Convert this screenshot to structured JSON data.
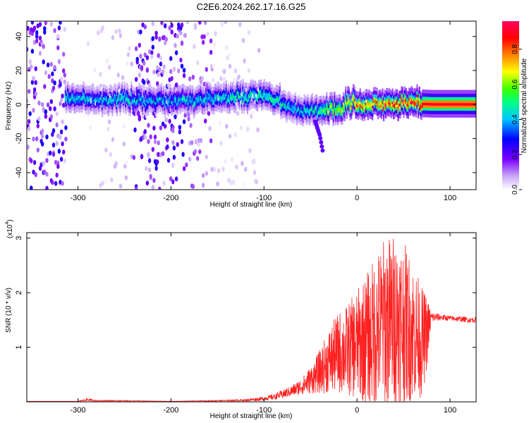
{
  "chart_data": [
    {
      "type": "heatmap",
      "title": "C2E6.2024.262.17.16.G25",
      "xlabel": "Height of straight line (km)",
      "ylabel": "Frequency (Hz)",
      "xlim": [
        -355,
        128
      ],
      "ylim": [
        -50,
        49
      ],
      "x_ticks": [
        -300,
        -200,
        -100,
        0,
        100
      ],
      "y_ticks": [
        -40,
        -20,
        0,
        20,
        40
      ],
      "colorbar": {
        "label": "Normalized spectral amplitude",
        "range": [
          0,
          0.96
        ],
        "ticks": [
          0.0,
          0.2,
          0.4,
          0.6,
          0.8
        ],
        "tick_labels": [
          "0.0",
          "0.2",
          "0.4",
          "0.6",
          "0.8"
        ],
        "colors": [
          "#ffffff",
          "#c8a8f8",
          "#7b00ff",
          "#0000ff",
          "#00c8ff",
          "#00ff80",
          "#40ff00",
          "#ffff00",
          "#ff8000",
          "#ff0000",
          "#ff0060"
        ]
      },
      "dominant_frequency_track": {
        "x": [
          -315,
          -300,
          -280,
          -260,
          -240,
          -220,
          -200,
          -180,
          -160,
          -140,
          -120,
          -105,
          -90,
          -75,
          -65,
          -55,
          -45,
          -35,
          -20,
          -10,
          0,
          20,
          40,
          60,
          80,
          100,
          128
        ],
        "y": [
          4,
          3.5,
          3,
          3,
          2.5,
          3,
          2.5,
          2.5,
          3.5,
          4.5,
          5.5,
          6,
          3,
          -1,
          -3,
          -3,
          -3,
          -3,
          -2,
          1,
          0,
          0.5,
          1,
          1,
          0.5,
          0.5,
          0.5
        ],
        "amplitude": [
          0.5,
          0.45,
          0.42,
          0.45,
          0.45,
          0.42,
          0.45,
          0.45,
          0.45,
          0.48,
          0.5,
          0.52,
          0.5,
          0.45,
          0.45,
          0.45,
          0.5,
          0.6,
          0.7,
          0.75,
          0.85,
          0.8,
          0.9,
          0.88,
          0.9,
          0.9,
          0.9
        ]
      },
      "tail_feature": {
        "x": [
          -45,
          -40,
          -37
        ],
        "y": [
          -10,
          -18,
          -27
        ],
        "amplitude": [
          0.2,
          0.2,
          0.2
        ]
      },
      "noise_regions": [
        {
          "x_range": [
            -355,
            -312
          ],
          "amplitude": 0.2
        },
        {
          "x_range": [
            -290,
            -240
          ],
          "amplitude": 0.05
        },
        {
          "x_range": [
            -240,
            -185
          ],
          "amplitude": 0.2
        },
        {
          "x_range": [
            -185,
            -155
          ],
          "amplitude": 0.12
        },
        {
          "x_range": [
            -155,
            -105
          ],
          "amplitude": 0.05
        }
      ]
    },
    {
      "type": "line",
      "xlabel": "Height of straight line (km)",
      "ylabel": "SNR (10 * v/v)",
      "scale_note": "(x10",
      "scale_exponent": "4",
      "xlim": [
        -355,
        128
      ],
      "ylim": [
        0,
        3.1
      ],
      "x_ticks": [
        -300,
        -200,
        -100,
        0,
        100
      ],
      "y_ticks": [
        1,
        2,
        3
      ],
      "color": "#ff2020",
      "series": [
        {
          "x": [
            -355,
            -300,
            -290,
            -280,
            -260,
            -200,
            -150,
            -120,
            -100,
            -90,
            -80,
            -70,
            -60,
            -50,
            -40,
            -30,
            -20,
            -10,
            0,
            10,
            20,
            30,
            40,
            50,
            60,
            70,
            75,
            80,
            90,
            100,
            110,
            120,
            128
          ],
          "y": [
            0.01,
            0.01,
            0.04,
            0.02,
            0.02,
            0.01,
            0.02,
            0.03,
            0.06,
            0.09,
            0.14,
            0.2,
            0.28,
            0.4,
            0.55,
            0.75,
            0.9,
            0.95,
            1.05,
            1.15,
            1.3,
            1.45,
            1.5,
            1.45,
            1.3,
            1.1,
            1.25,
            1.55,
            1.55,
            1.53,
            1.52,
            1.5,
            1.5
          ],
          "spread": [
            0,
            0,
            0.03,
            0.01,
            0.01,
            0,
            0.01,
            0.02,
            0.04,
            0.05,
            0.08,
            0.1,
            0.15,
            0.25,
            0.4,
            0.6,
            0.75,
            0.85,
            1.0,
            1.2,
            1.4,
            1.6,
            1.6,
            1.5,
            1.3,
            1.0,
            0.7,
            0.1,
            0.06,
            0.05,
            0.05,
            0.05,
            0.05
          ]
        }
      ]
    }
  ]
}
